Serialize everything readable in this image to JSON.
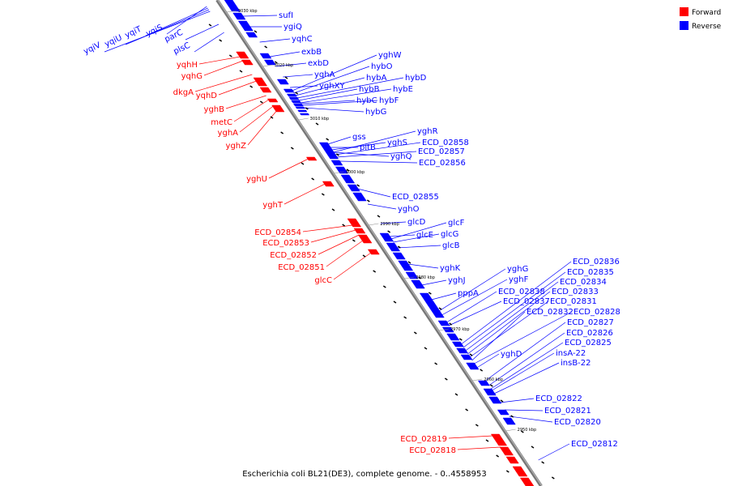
{
  "caption": "Escherichia coli BL21(DE3), complete genome. - 0..4558953",
  "legend": {
    "forward_label": "Forward",
    "reverse_label": "Reverse",
    "forward_color": "#ff0000",
    "reverse_color": "#0000ff"
  },
  "kbp_marks": [
    "3030 kbp",
    "3020 kbp",
    "3010 kbp",
    "3000 kbp",
    "2990 kbp",
    "2980 kbp",
    "2970 kbp",
    "2960 kbp",
    "2950 kbp"
  ],
  "reverse_genes": [
    "sufI",
    "ygiQ",
    "yqhC",
    "exbB",
    "exbD",
    "yghW",
    "yqhA",
    "hybO",
    "hybA",
    "hybD",
    "yghXY",
    "hybB",
    "hybE",
    "hybC",
    "hybF",
    "hybG",
    "yghR",
    "gss",
    "ECD_02858",
    "yghS",
    "ECD_02857",
    "pitB",
    "yghQ",
    "ECD_02856",
    "ECD_02855",
    "yghO",
    "glcF",
    "glcD",
    "glcE",
    "glcG",
    "glcB",
    "yghK",
    "yghG",
    "yghJ",
    "yghF",
    "pppA",
    "ECD_02836",
    "ECD_02835",
    "ECD_02834",
    "ECD_02838",
    "ECD_02833",
    "ECD_02837",
    "ECD_02831",
    "ECD_02832",
    "ECD_02828",
    "ECD_02827",
    "ECD_02826",
    "ECD_02825",
    "yghD",
    "insA-22",
    "insB-22",
    "ECD_02822",
    "ECD_02821",
    "ECD_02820",
    "ECD_02812",
    "yqiV",
    "yqiU",
    "yqiT",
    "yqiS",
    "parC",
    "plsC"
  ],
  "forward_genes": [
    "yqhH",
    "yqhG",
    "dkgA",
    "yqhD",
    "yghB",
    "metC",
    "yghA",
    "yghZ",
    "yghU",
    "yghT",
    "ECD_02854",
    "ECD_02853",
    "ECD_02852",
    "ECD_02851",
    "glcC",
    "ECD_02819",
    "ECD_02818"
  ]
}
